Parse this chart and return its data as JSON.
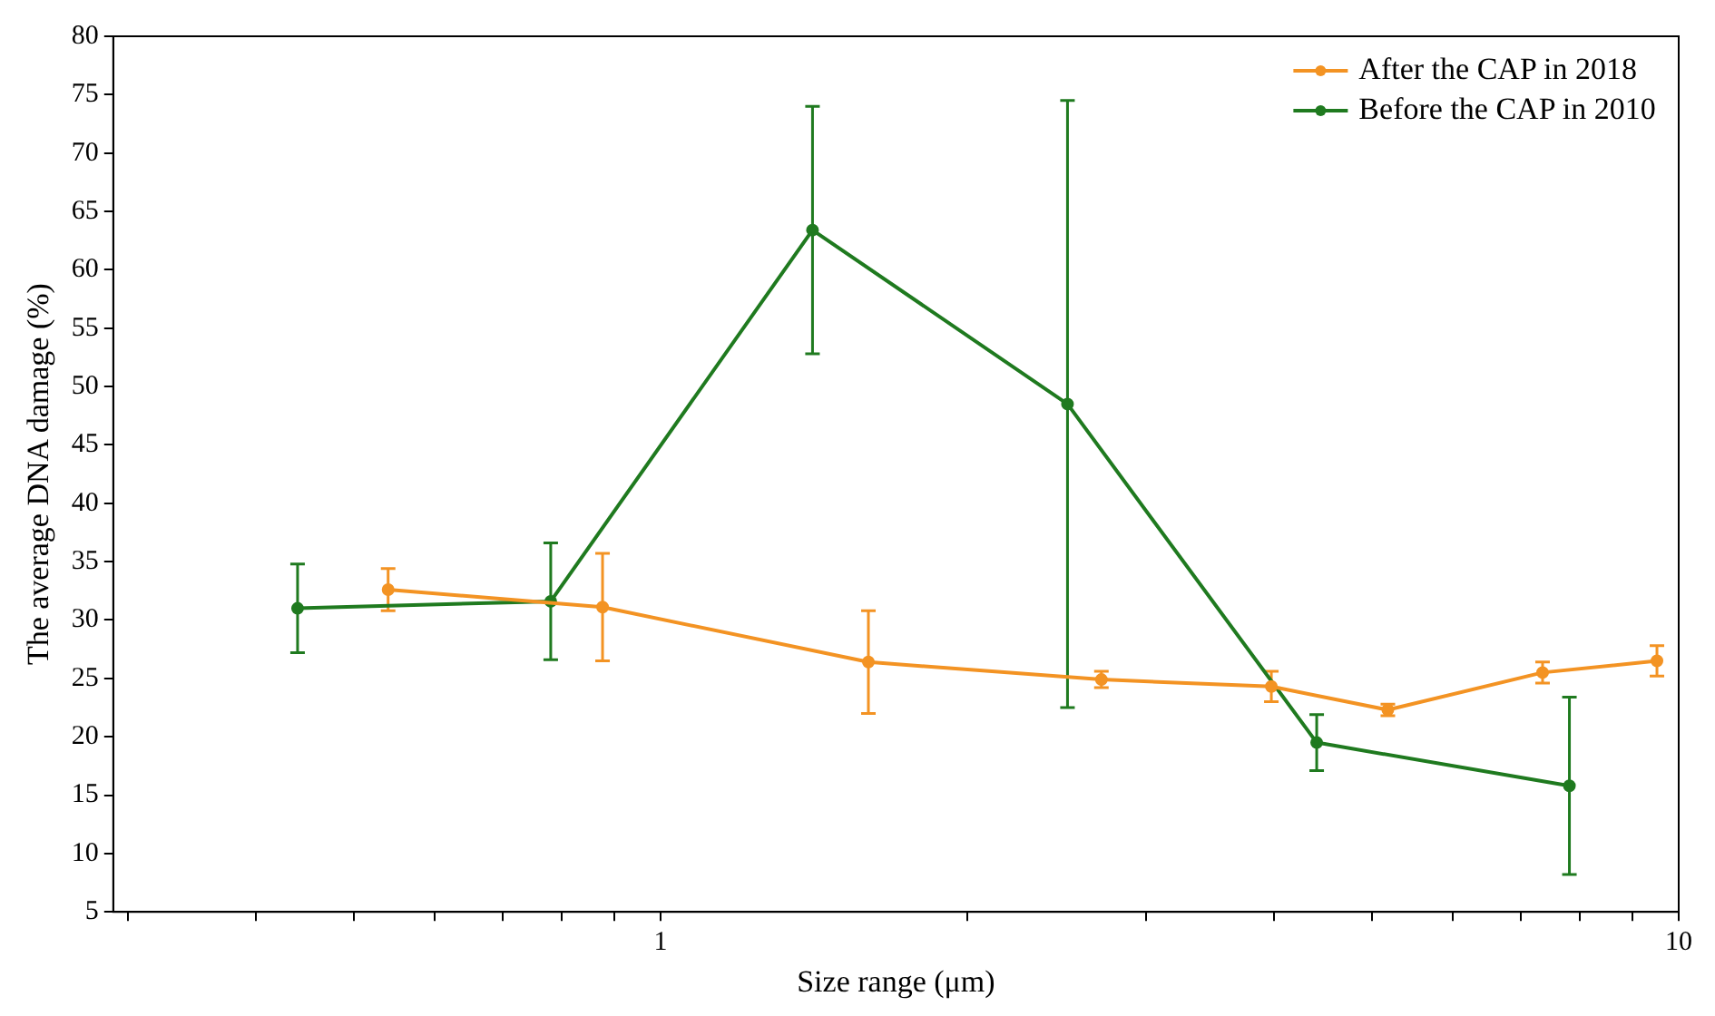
{
  "chart_data": {
    "type": "line",
    "xlabel": "Size range (μm)",
    "ylabel": "The average DNA damage (%)",
    "log": "x",
    "xlim": [
      0.29,
      10
    ],
    "xticks": [
      {
        "value": 0.3,
        "label": null
      },
      {
        "value": 0.4,
        "label": null
      },
      {
        "value": 0.5,
        "label": null
      },
      {
        "value": 0.6,
        "label": null
      },
      {
        "value": 0.7,
        "label": null
      },
      {
        "value": 0.8,
        "label": null
      },
      {
        "value": 0.9,
        "label": null
      },
      1,
      {
        "value": 2,
        "label": null
      },
      {
        "value": 3,
        "label": null
      },
      {
        "value": 4,
        "label": null
      },
      {
        "value": 5,
        "label": null
      },
      {
        "value": 6,
        "label": null
      },
      {
        "value": 7,
        "label": null
      },
      {
        "value": 8,
        "label": null
      },
      {
        "value": 9,
        "label": null
      },
      10
    ],
    "ylim": [
      5,
      80
    ],
    "yticks": [
      5,
      10,
      15,
      20,
      25,
      30,
      35,
      40,
      45,
      50,
      55,
      60,
      65,
      70,
      75,
      80
    ],
    "grid": false,
    "legend": "top right",
    "marker": "circle",
    "line_style": "solid",
    "series": [
      {
        "name": "After the CAP in 2018",
        "color": "#f39323",
        "x": [
          0.54,
          0.877,
          1.6,
          2.71,
          3.98,
          5.18,
          7.35,
          9.52
        ],
        "values": [
          32.6,
          31.1,
          26.4,
          24.9,
          24.3,
          22.3,
          25.5,
          26.5
        ],
        "errors": [
          1.8,
          4.6,
          4.4,
          0.7,
          1.3,
          0.5,
          0.9,
          1.3
        ]
      },
      {
        "name": "Before the CAP in 2010",
        "color": "#1f7a1f",
        "x": [
          0.44,
          0.78,
          1.41,
          2.51,
          4.41,
          7.81
        ],
        "values": [
          31,
          31.6,
          63.4,
          48.5,
          19.5,
          15.8
        ],
        "errors": [
          3.8,
          5,
          10.6,
          26,
          2.4,
          7.6
        ]
      }
    ]
  }
}
